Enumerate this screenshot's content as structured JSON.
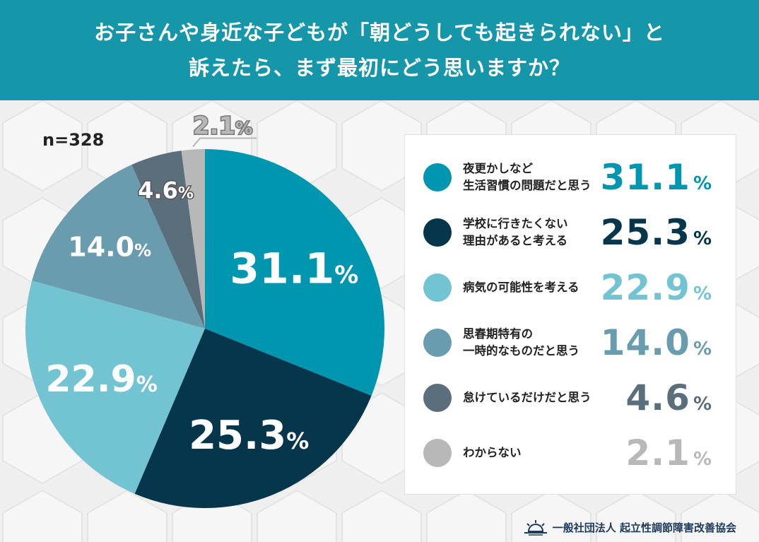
{
  "header": {
    "line1": "お子さんや身近な子どもが「朝どうしても起きられない」と",
    "line2": "訴えたら、まず最初にどう思いますか？"
  },
  "sample_size": "n=328",
  "footer": {
    "org": "一般社団法人 起立性調節障害改善協会"
  },
  "colors": {
    "header": "#1696a9",
    "series": [
      "#0096b0",
      "#06364c",
      "#72c4d2",
      "#6a9caf",
      "#5b6e7c",
      "#b8b8b8"
    ]
  },
  "chart_data": {
    "type": "pie",
    "title": "お子さんや身近な子どもが「朝どうしても起きられない」と訴えたら、まず最初にどう思いますか？",
    "unit": "%",
    "slices": [
      {
        "label_lines": [
          "夜更かしなど",
          "生活習慣の問題だと思う"
        ],
        "value": 31.1,
        "display": "31.1",
        "color": "#0096b0"
      },
      {
        "label_lines": [
          "学校に行きたくない",
          "理由があると考える"
        ],
        "value": 25.3,
        "display": "25.3",
        "color": "#06364c"
      },
      {
        "label_lines": [
          "病気の可能性を考える"
        ],
        "value": 22.9,
        "display": "22.9",
        "color": "#72c4d2"
      },
      {
        "label_lines": [
          "思春期特有の",
          "一時的なものだと思う"
        ],
        "value": 14.0,
        "display": "14.0",
        "color": "#6a9caf"
      },
      {
        "label_lines": [
          "怠けているだけだと思う"
        ],
        "value": 4.6,
        "display": "4.6",
        "color": "#5b6e7c"
      },
      {
        "label_lines": [
          "わからない"
        ],
        "value": 2.1,
        "display": "2.1",
        "color": "#b8b8b8"
      }
    ]
  }
}
